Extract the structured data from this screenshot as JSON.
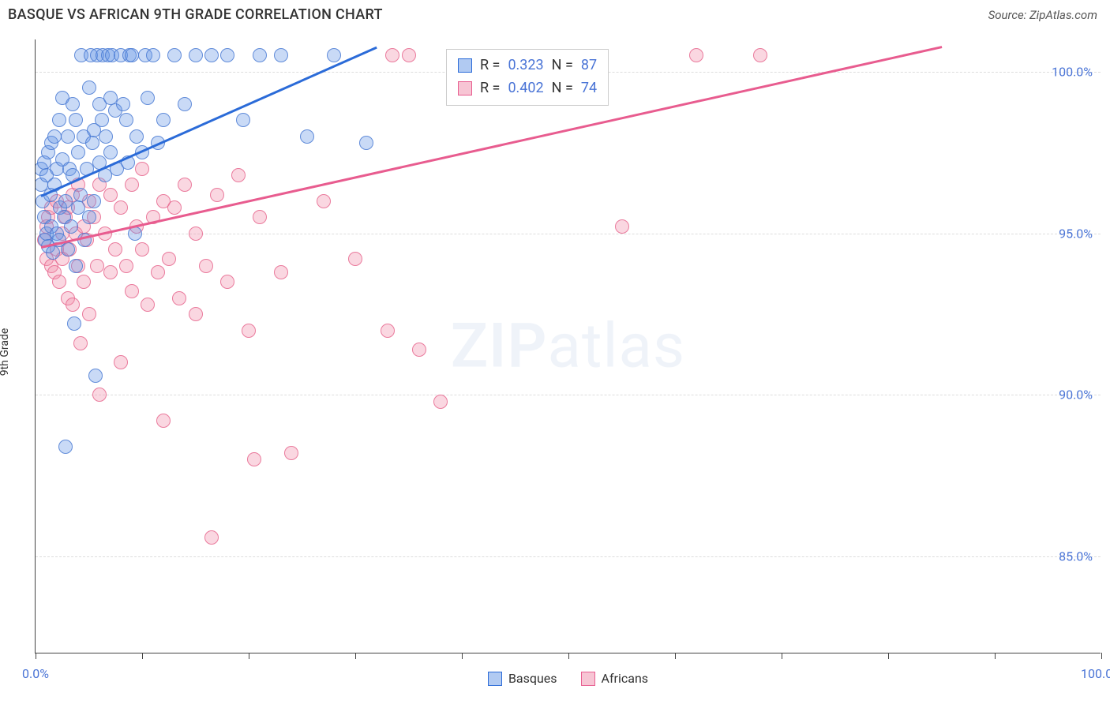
{
  "title": "BASQUE VS AFRICAN 9TH GRADE CORRELATION CHART",
  "source": "Source: ZipAtlas.com",
  "ylabel": "9th Grade",
  "watermark": {
    "bold": "ZIP",
    "rest": "atlas"
  },
  "chart": {
    "type": "scatter",
    "background_color": "#ffffff",
    "grid_color": "#dddddd",
    "axis_color": "#444444",
    "tick_label_color": "#4a74d6",
    "marker_radius": 9,
    "xlim": [
      0,
      100
    ],
    "ylim": [
      82,
      101
    ],
    "x_ticks": [
      0,
      10,
      20,
      30,
      40,
      50,
      60,
      70,
      80,
      90,
      100
    ],
    "x_tick_labels": {
      "0": "0.0%",
      "100": "100.0%"
    },
    "y_gridlines": [
      85,
      90,
      95,
      100
    ],
    "y_tick_labels": {
      "85": "85.0%",
      "90": "90.0%",
      "95": "95.0%",
      "100": "100.0%"
    },
    "trend_lines": {
      "blue": {
        "color": "#2b6bd8",
        "width": 3,
        "x1": 0.5,
        "y1": 96.2,
        "x2": 32,
        "y2": 100.8
      },
      "pink": {
        "color": "#e85c8f",
        "width": 3,
        "x1": 0.5,
        "y1": 94.6,
        "x2": 85,
        "y2": 100.8
      }
    },
    "stats": {
      "blue": {
        "R_label": "R =",
        "R": "0.323",
        "N_label": "N =",
        "N": "87"
      },
      "pink": {
        "R_label": "R =",
        "R": "0.402",
        "N_label": "N =",
        "N": "74"
      }
    },
    "legend": {
      "blue": "Basques",
      "pink": "Africans"
    },
    "series_colors": {
      "blue": {
        "fill": "rgba(100,150,230,0.35)",
        "stroke": "rgba(70,120,210,0.8)"
      },
      "pink": {
        "fill": "rgba(240,140,170,0.35)",
        "stroke": "rgba(230,100,140,0.8)"
      }
    },
    "series": {
      "blue": [
        [
          0.5,
          96.5
        ],
        [
          0.5,
          97.0
        ],
        [
          0.7,
          96.0
        ],
        [
          0.8,
          95.5
        ],
        [
          0.8,
          97.2
        ],
        [
          0.9,
          94.8
        ],
        [
          1.0,
          96.8
        ],
        [
          1.0,
          95.0
        ],
        [
          1.2,
          97.5
        ],
        [
          1.2,
          94.6
        ],
        [
          1.4,
          96.2
        ],
        [
          1.5,
          97.8
        ],
        [
          1.5,
          95.2
        ],
        [
          1.6,
          94.4
        ],
        [
          1.8,
          98.0
        ],
        [
          1.8,
          96.5
        ],
        [
          2.0,
          95.0
        ],
        [
          2.0,
          97.0
        ],
        [
          2.2,
          98.5
        ],
        [
          2.2,
          94.8
        ],
        [
          2.3,
          95.8
        ],
        [
          2.5,
          97.3
        ],
        [
          2.5,
          99.2
        ],
        [
          2.7,
          95.5
        ],
        [
          2.8,
          96.0
        ],
        [
          2.8,
          88.4
        ],
        [
          3.0,
          98.0
        ],
        [
          3.0,
          94.5
        ],
        [
          3.2,
          97.0
        ],
        [
          3.3,
          95.2
        ],
        [
          3.5,
          96.8
        ],
        [
          3.5,
          99.0
        ],
        [
          3.6,
          92.2
        ],
        [
          3.8,
          98.5
        ],
        [
          3.8,
          94.0
        ],
        [
          4.0,
          97.5
        ],
        [
          4.0,
          95.8
        ],
        [
          4.2,
          96.2
        ],
        [
          4.3,
          100.5
        ],
        [
          4.5,
          98.0
        ],
        [
          4.6,
          94.8
        ],
        [
          4.8,
          97.0
        ],
        [
          5.0,
          99.5
        ],
        [
          5.0,
          95.5
        ],
        [
          5.2,
          100.5
        ],
        [
          5.3,
          97.8
        ],
        [
          5.5,
          98.2
        ],
        [
          5.5,
          96.0
        ],
        [
          5.6,
          90.6
        ],
        [
          5.8,
          100.5
        ],
        [
          6.0,
          97.2
        ],
        [
          6.0,
          99.0
        ],
        [
          6.2,
          98.5
        ],
        [
          6.3,
          100.5
        ],
        [
          6.5,
          96.8
        ],
        [
          6.6,
          98.0
        ],
        [
          6.8,
          100.5
        ],
        [
          7.0,
          97.5
        ],
        [
          7.0,
          99.2
        ],
        [
          7.2,
          100.5
        ],
        [
          7.5,
          98.8
        ],
        [
          7.6,
          97.0
        ],
        [
          8.0,
          100.5
        ],
        [
          8.2,
          99.0
        ],
        [
          8.5,
          98.5
        ],
        [
          8.7,
          97.2
        ],
        [
          8.8,
          100.5
        ],
        [
          9.0,
          100.5
        ],
        [
          9.3,
          95.0
        ],
        [
          9.5,
          98.0
        ],
        [
          10.0,
          97.5
        ],
        [
          10.3,
          100.5
        ],
        [
          10.5,
          99.2
        ],
        [
          11.0,
          100.5
        ],
        [
          11.5,
          97.8
        ],
        [
          12.0,
          98.5
        ],
        [
          13.0,
          100.5
        ],
        [
          14.0,
          99.0
        ],
        [
          15.0,
          100.5
        ],
        [
          16.5,
          100.5
        ],
        [
          18.0,
          100.5
        ],
        [
          19.5,
          98.5
        ],
        [
          21.0,
          100.5
        ],
        [
          23.0,
          100.5
        ],
        [
          25.5,
          98.0
        ],
        [
          28.0,
          100.5
        ],
        [
          31.0,
          97.8
        ]
      ],
      "pink": [
        [
          0.8,
          94.8
        ],
        [
          1.0,
          95.2
        ],
        [
          1.0,
          94.2
        ],
        [
          1.2,
          95.5
        ],
        [
          1.5,
          94.0
        ],
        [
          1.5,
          95.8
        ],
        [
          1.8,
          93.8
        ],
        [
          2.0,
          94.5
        ],
        [
          2.0,
          96.0
        ],
        [
          2.2,
          93.5
        ],
        [
          2.5,
          95.0
        ],
        [
          2.5,
          94.2
        ],
        [
          2.8,
          95.5
        ],
        [
          3.0,
          93.0
        ],
        [
          3.0,
          95.8
        ],
        [
          3.2,
          94.5
        ],
        [
          3.5,
          96.2
        ],
        [
          3.5,
          92.8
        ],
        [
          3.8,
          95.0
        ],
        [
          4.0,
          94.0
        ],
        [
          4.0,
          96.5
        ],
        [
          4.2,
          91.6
        ],
        [
          4.5,
          95.2
        ],
        [
          4.5,
          93.5
        ],
        [
          4.8,
          94.8
        ],
        [
          5.0,
          96.0
        ],
        [
          5.0,
          92.5
        ],
        [
          5.5,
          95.5
        ],
        [
          5.8,
          94.0
        ],
        [
          6.0,
          96.5
        ],
        [
          6.0,
          90.0
        ],
        [
          6.5,
          95.0
        ],
        [
          7.0,
          93.8
        ],
        [
          7.0,
          96.2
        ],
        [
          7.5,
          94.5
        ],
        [
          8.0,
          95.8
        ],
        [
          8.0,
          91.0
        ],
        [
          8.5,
          94.0
        ],
        [
          9.0,
          96.5
        ],
        [
          9.0,
          93.2
        ],
        [
          9.5,
          95.2
        ],
        [
          10.0,
          94.5
        ],
        [
          10.0,
          97.0
        ],
        [
          10.5,
          92.8
        ],
        [
          11.0,
          95.5
        ],
        [
          11.5,
          93.8
        ],
        [
          12.0,
          96.0
        ],
        [
          12.0,
          89.2
        ],
        [
          12.5,
          94.2
        ],
        [
          13.0,
          95.8
        ],
        [
          13.5,
          93.0
        ],
        [
          14.0,
          96.5
        ],
        [
          15.0,
          92.5
        ],
        [
          15.0,
          95.0
        ],
        [
          16.0,
          94.0
        ],
        [
          16.5,
          85.6
        ],
        [
          17.0,
          96.2
        ],
        [
          18.0,
          93.5
        ],
        [
          19.0,
          96.8
        ],
        [
          20.0,
          92.0
        ],
        [
          20.5,
          88.0
        ],
        [
          21.0,
          95.5
        ],
        [
          23.0,
          93.8
        ],
        [
          24.0,
          88.2
        ],
        [
          27.0,
          96.0
        ],
        [
          30.0,
          94.2
        ],
        [
          33.0,
          92.0
        ],
        [
          33.5,
          100.5
        ],
        [
          35.0,
          100.5
        ],
        [
          36.0,
          91.4
        ],
        [
          38.0,
          89.8
        ],
        [
          55.0,
          95.2
        ],
        [
          62.0,
          100.5
        ],
        [
          68.0,
          100.5
        ]
      ]
    }
  }
}
